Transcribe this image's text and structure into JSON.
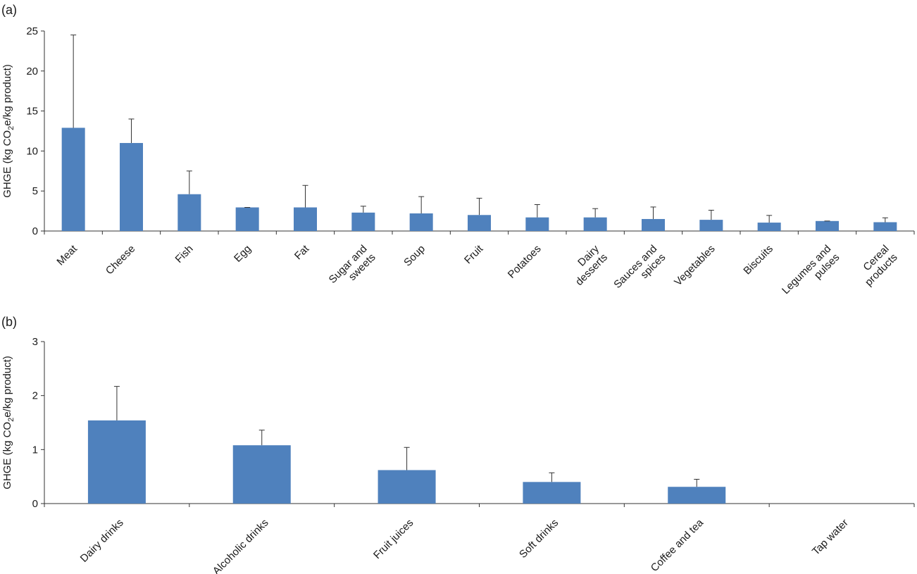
{
  "chart_data": [
    {
      "panel_label": "(a)",
      "type": "bar",
      "ylabel": "GHGE (kg CO2e/kg product)",
      "ylim": [
        0,
        25
      ],
      "yticks": [
        0,
        5,
        10,
        15,
        20,
        25
      ],
      "grid": false,
      "bar_color": "#4f81bd",
      "categories": [
        "Meat",
        "Cheese",
        "Fish",
        "Egg",
        "Fat",
        "Sugar and sweets",
        "Soup",
        "Fruit",
        "Potatoes",
        "Dairy desserts",
        "Sauces and spices",
        "Vegetables",
        "Biscuits",
        "Legumes and pulses",
        "Cereal products"
      ],
      "category_lines": [
        [
          "Meat"
        ],
        [
          "Cheese"
        ],
        [
          "Fish"
        ],
        [
          "Egg"
        ],
        [
          "Fat"
        ],
        [
          "Sugar and",
          "sweets"
        ],
        [
          "Soup"
        ],
        [
          "Fruit"
        ],
        [
          "Potatoes"
        ],
        [
          "Dairy",
          "desserts"
        ],
        [
          "Sauces and",
          "spices"
        ],
        [
          "Vegetables"
        ],
        [
          "Biscuits"
        ],
        [
          "Legumes and",
          "pulses"
        ],
        [
          "Cereal",
          "products"
        ]
      ],
      "values": [
        12.9,
        11.0,
        4.6,
        2.95,
        2.95,
        2.3,
        2.2,
        2.0,
        1.7,
        1.7,
        1.5,
        1.4,
        1.05,
        1.25,
        1.1
      ],
      "error_upper": [
        24.5,
        14.0,
        7.5,
        2.95,
        5.7,
        3.1,
        4.3,
        4.1,
        3.3,
        2.8,
        3.0,
        2.6,
        1.95,
        1.25,
        1.65
      ]
    },
    {
      "panel_label": "(b)",
      "type": "bar",
      "ylabel": "GHGE (kg CO2e/kg product)",
      "ylim": [
        0,
        3
      ],
      "yticks": [
        0,
        1,
        2,
        3
      ],
      "grid": false,
      "bar_color": "#4f81bd",
      "categories": [
        "Dairy drinks",
        "Alcoholic drinks",
        "Fruit juices",
        "Soft drinks",
        "Coffee and tea",
        "Tap water"
      ],
      "category_lines": [
        [
          "Dairy drinks"
        ],
        [
          "Alcoholic drinks"
        ],
        [
          "Fruit juices"
        ],
        [
          "Soft drinks"
        ],
        [
          "Coffee and tea"
        ],
        [
          "Tap water"
        ]
      ],
      "values": [
        1.54,
        1.08,
        0.62,
        0.4,
        0.31,
        0.0
      ],
      "error_upper": [
        2.17,
        1.36,
        1.04,
        0.57,
        0.45,
        0.0
      ]
    }
  ]
}
